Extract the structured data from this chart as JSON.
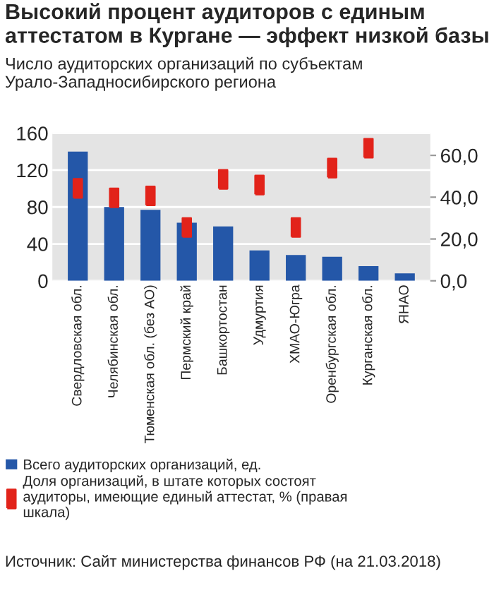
{
  "chart_data": {
    "type": "bar",
    "title": "Высокий процент аудиторов с единым аттестатом в Кургане — эффект низкой базы",
    "subtitle": "Число аудиторских организаций по субъектам Урало-Западносибирского региона",
    "categories": [
      "Свердловская обл.",
      "Челябинская обл.",
      "Тюменская обл. (без АО)",
      "Пермский край",
      "Башкортостан",
      "Удмуртия",
      "ХМАО-Югра",
      "Оренбургская обл.",
      "Курганская обл.",
      "ЯНАО"
    ],
    "series": [
      {
        "name": "Всего аудиторских организаций, ед.",
        "color": "#2457a8",
        "values": [
          140,
          80,
          77,
          63,
          59,
          33,
          28,
          26,
          16,
          8
        ]
      },
      {
        "name": "Доля организаций, в штате которых состоят\nаудиторы, имеющие единый аттестат, % (правая\nшкала)",
        "type": "scatter",
        "axis": "y2",
        "marker": "square",
        "color": "#e2231a",
        "values": [
          44.2,
          39.7,
          40.6,
          25.5,
          48.5,
          45.8,
          25.5,
          53.9,
          63.4,
          null
        ]
      }
    ],
    "ylim": [
      0,
      160
    ],
    "yticks": [
      0,
      40,
      80,
      120,
      160
    ],
    "y2lim": [
      0,
      70.6
    ],
    "y2ticks": [
      {
        "value": 0,
        "label": "0,0"
      },
      {
        "value": 20,
        "label": "20,0"
      },
      {
        "value": 40,
        "label": "40,0"
      },
      {
        "value": 60,
        "label": "60,0"
      }
    ],
    "grid": "y",
    "legend": "bottom",
    "annotations": [
      "Источник: Сайт министерства финансов РФ (на 21.03.2018)"
    ]
  }
}
